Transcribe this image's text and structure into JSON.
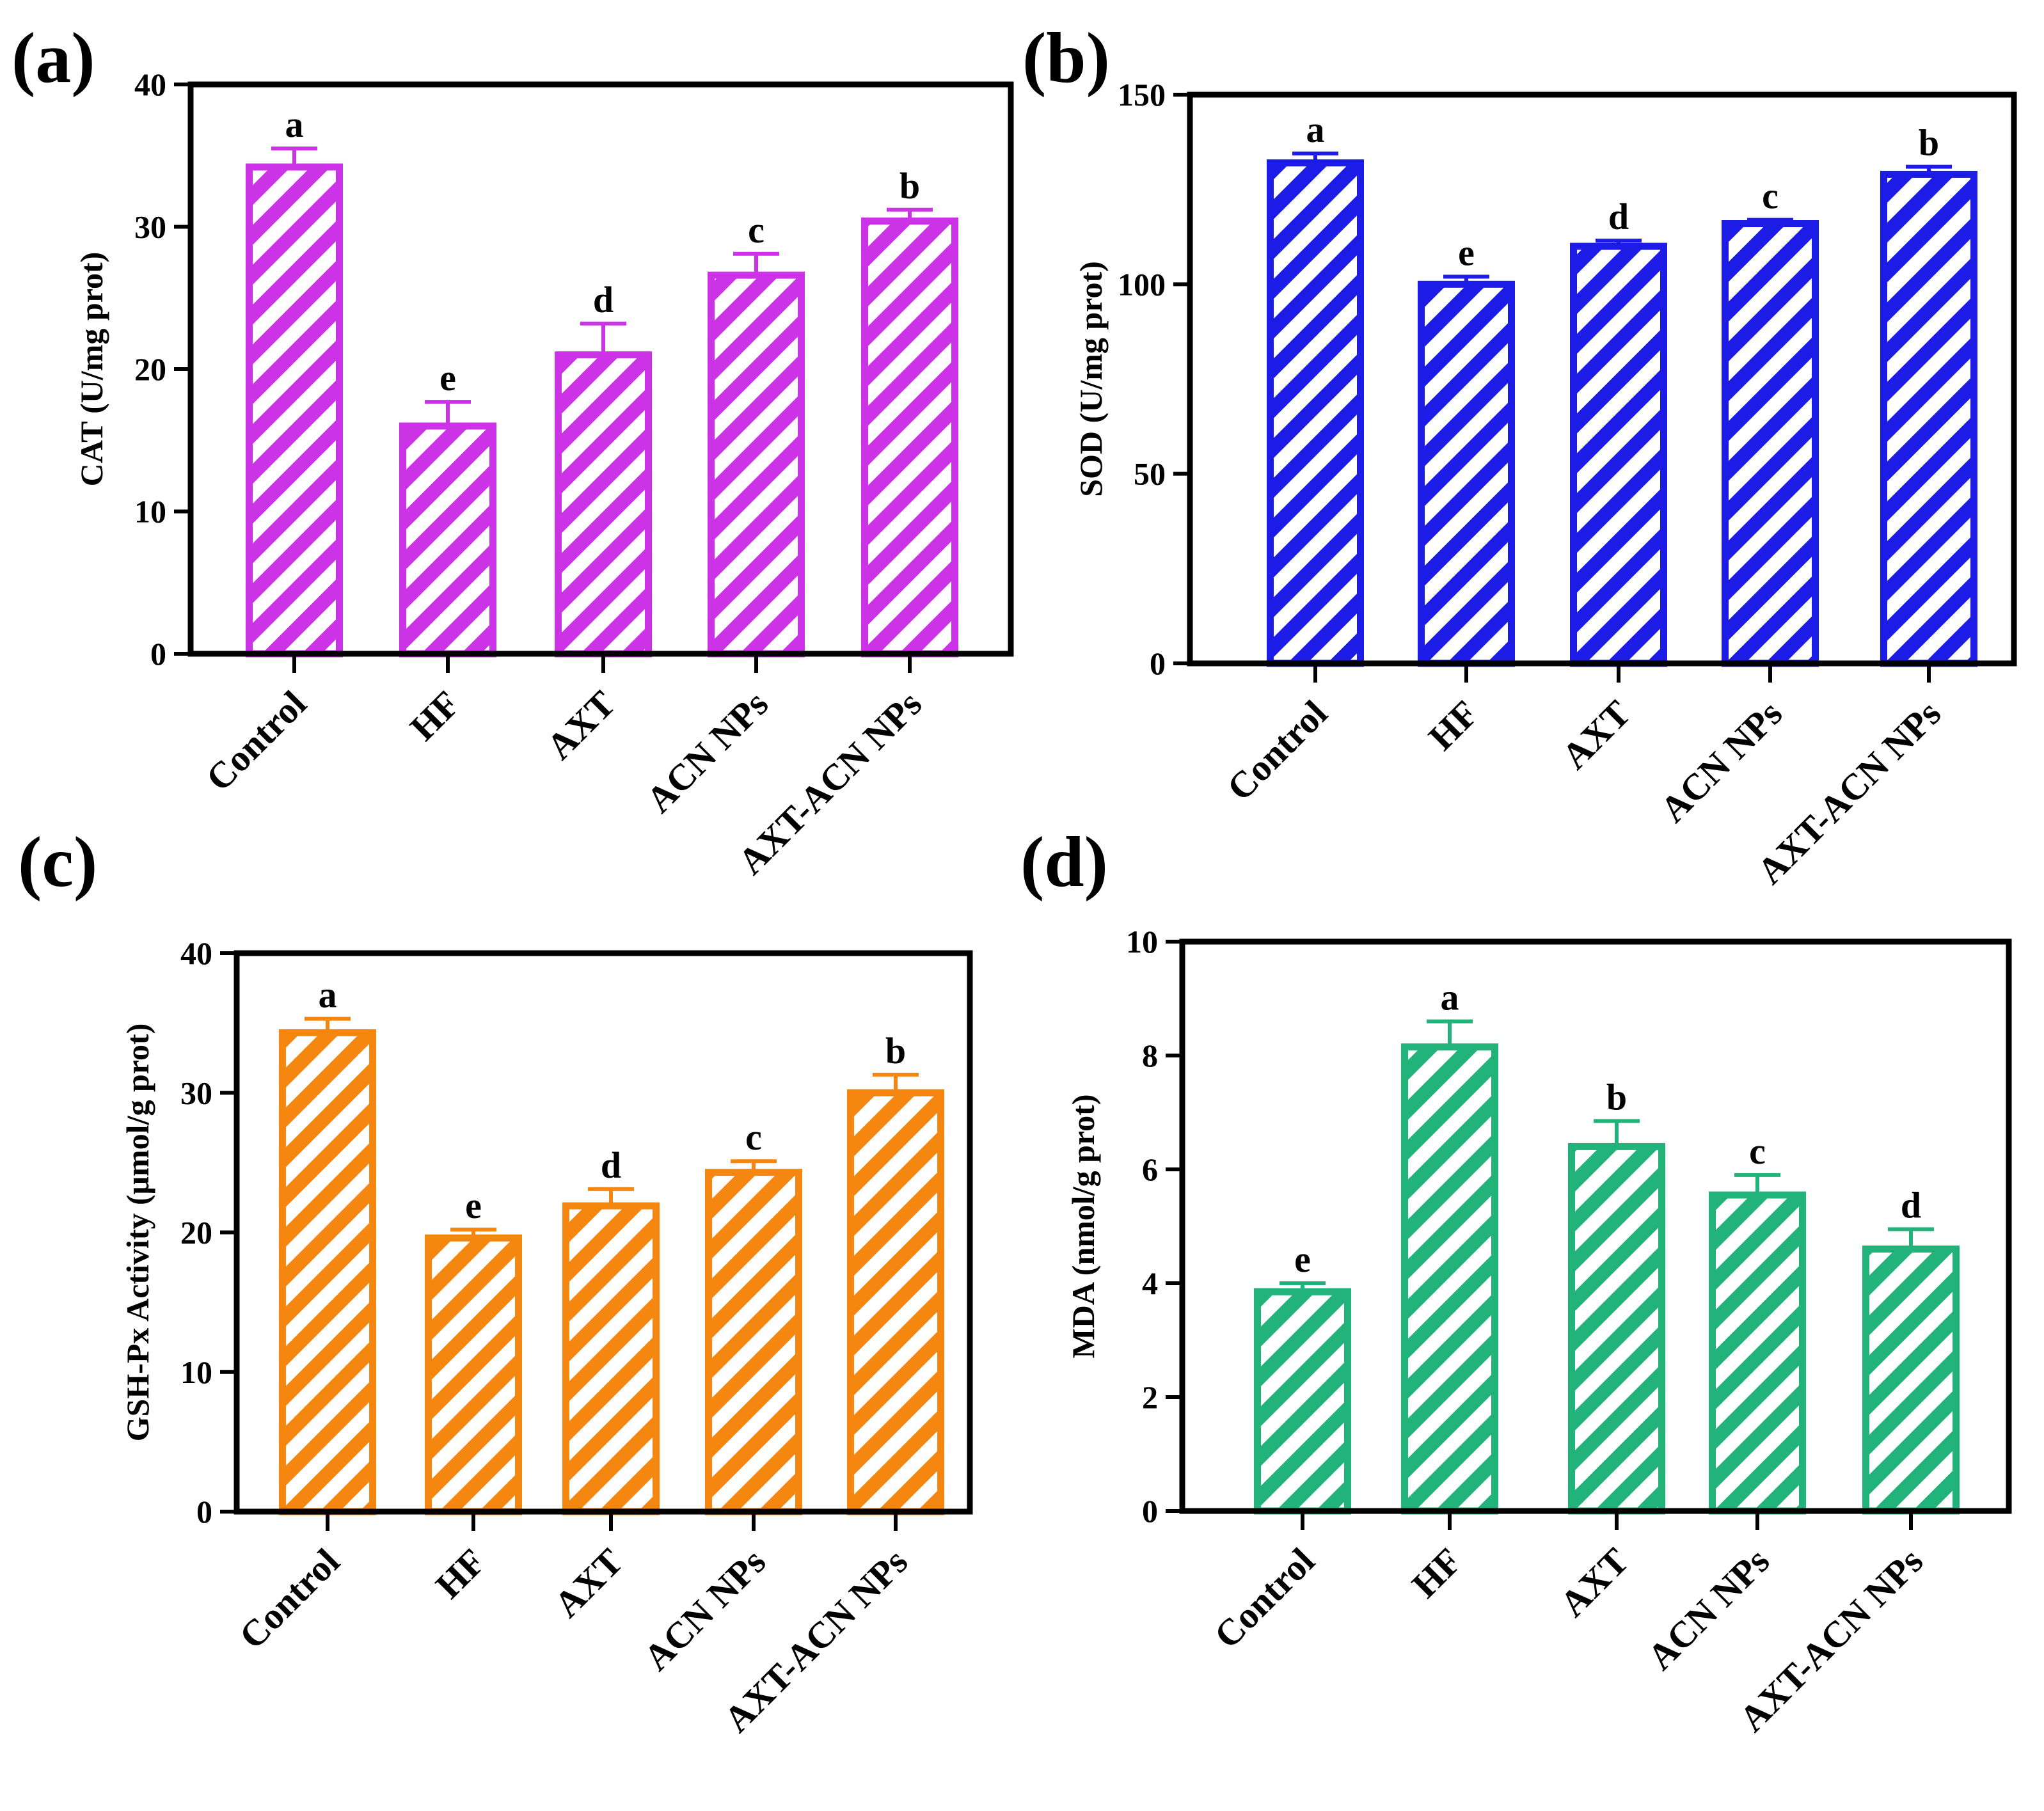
{
  "chart_data": [
    {
      "panel": "(a)",
      "type": "bar",
      "color": "#CC33E6",
      "categories": [
        "Control",
        "HF",
        "AXT",
        "ACN NPs",
        "AXT-ACN NPs"
      ],
      "values": [
        34.2,
        16.0,
        21.0,
        26.6,
        30.4
      ],
      "errors": [
        1.3,
        1.7,
        2.2,
        1.5,
        0.8
      ],
      "significance": [
        "a",
        "e",
        "d",
        "c",
        "b"
      ],
      "ylabel": "CAT (U/mg prot)",
      "ylim": [
        0,
        40
      ],
      "yticks": [
        0,
        10,
        20,
        30,
        40
      ],
      "tick_labels": [
        "0",
        "10",
        "20",
        "30",
        "40"
      ]
    },
    {
      "panel": "(b)",
      "type": "bar",
      "color": "#1C1CE6",
      "categories": [
        "Control",
        "HF",
        "AXT",
        "ACN NPs",
        "AXT-ACN NPs"
      ],
      "values": [
        132,
        100,
        110,
        116,
        129
      ],
      "errors": [
        2.5,
        2.0,
        1.5,
        1.0,
        2.0
      ],
      "significance": [
        "a",
        "e",
        "d",
        "c",
        "b"
      ],
      "ylabel": "SOD (U/mg prot)",
      "ylim": [
        0,
        150
      ],
      "yticks": [
        0,
        50,
        100,
        150
      ],
      "tick_labels": [
        "0",
        "50",
        "100",
        "150"
      ]
    },
    {
      "panel": "(c)",
      "type": "bar",
      "color": "#F5860F",
      "categories": [
        "Control",
        "HF",
        "AXT",
        "ACN NPs",
        "AXT-ACN NPs"
      ],
      "values": [
        34.3,
        19.6,
        21.9,
        24.3,
        30.0
      ],
      "errors": [
        1.0,
        0.6,
        1.2,
        0.8,
        1.3
      ],
      "significance": [
        "a",
        "e",
        "d",
        "c",
        "b"
      ],
      "ylabel": "GSH-Px Activity (μmol/g prot)",
      "ylim": [
        0,
        40
      ],
      "yticks": [
        0,
        10,
        20,
        30,
        40
      ],
      "tick_labels": [
        "0",
        "10",
        "20",
        "30",
        "40"
      ]
    },
    {
      "panel": "(d)",
      "type": "bar",
      "color": "#22B37A",
      "categories": [
        "Control",
        "HF",
        "AXT",
        "ACN NPs",
        "AXT-ACN NPs"
      ],
      "values": [
        3.85,
        8.15,
        6.4,
        5.55,
        4.6
      ],
      "errors": [
        0.15,
        0.45,
        0.45,
        0.35,
        0.35
      ],
      "significance": [
        "e",
        "a",
        "b",
        "c",
        "d"
      ],
      "ylabel": "MDA (nmol/g prot)",
      "ylim": [
        0,
        10
      ],
      "yticks": [
        0,
        2,
        4,
        6,
        8,
        10
      ],
      "tick_labels": [
        "0",
        "2",
        "4",
        "6",
        "8",
        "10"
      ]
    }
  ]
}
